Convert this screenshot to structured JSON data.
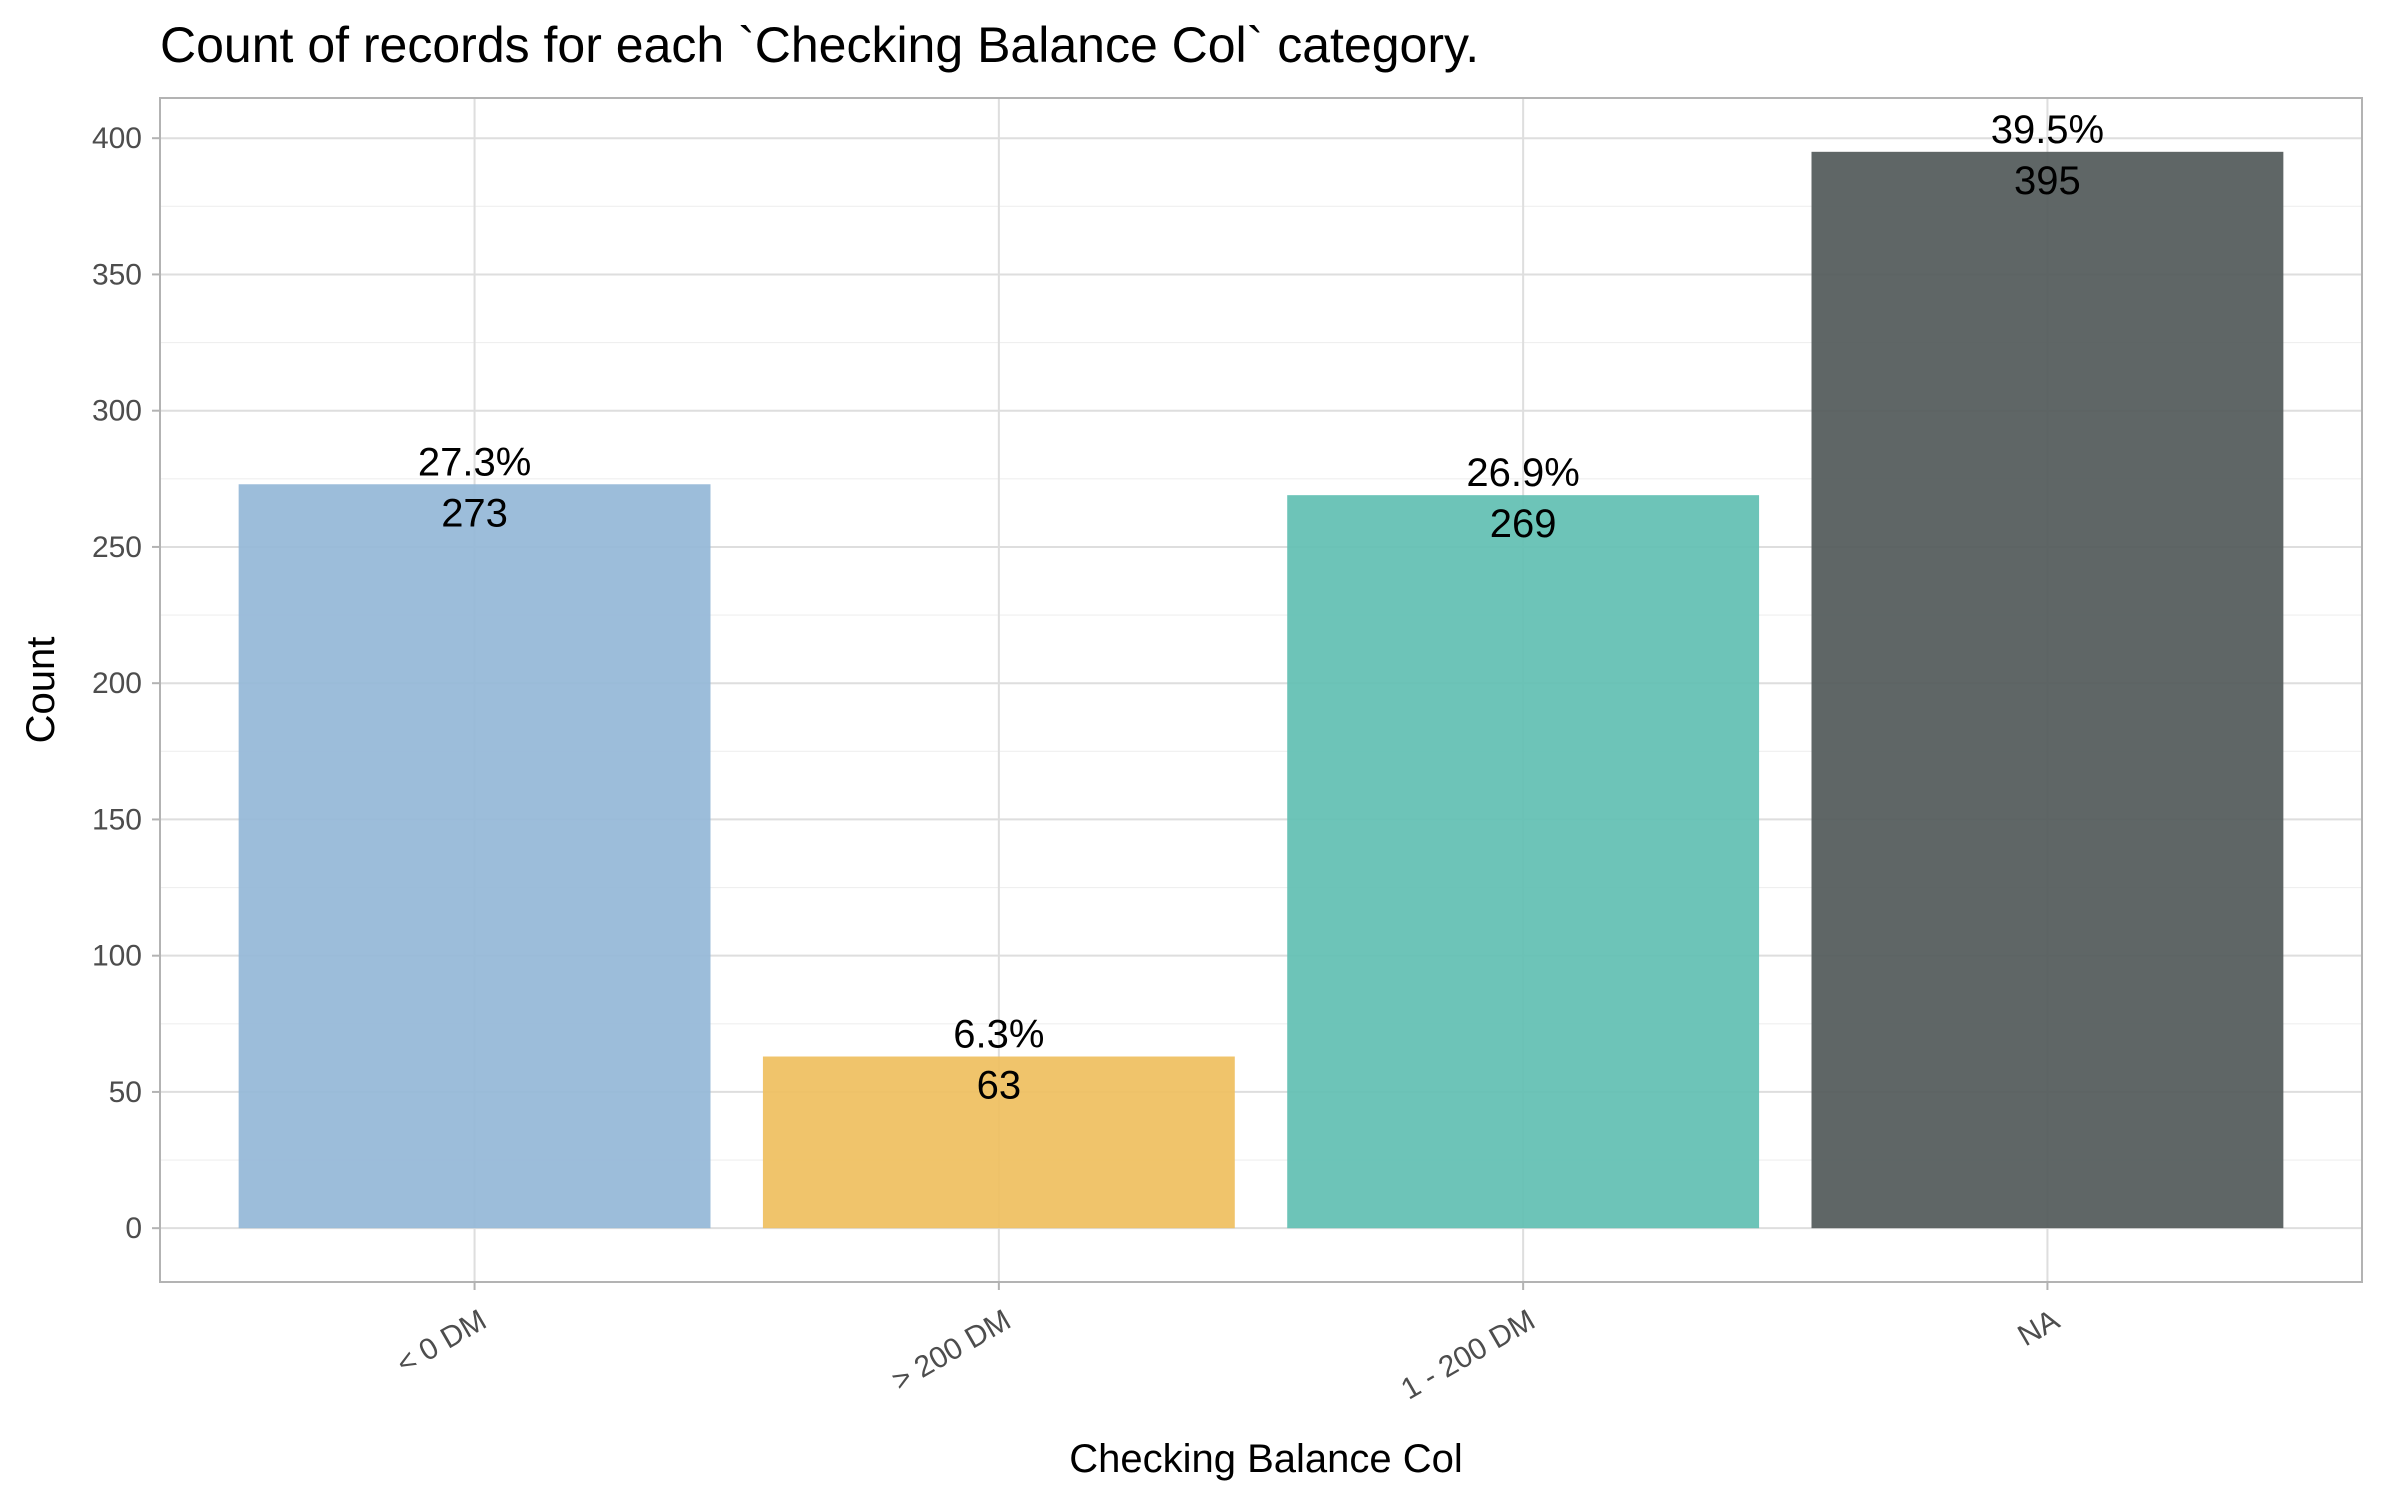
{
  "chart_data": {
    "type": "bar",
    "title": "Count of records for each `Checking Balance Col` category.",
    "xlabel": "Checking Balance Col",
    "ylabel": "Count",
    "categories": [
      "< 0 DM",
      "> 200 DM",
      "1 - 200 DM",
      "NA"
    ],
    "values": [
      273,
      63,
      269,
      395
    ],
    "percent_labels": [
      "27.3%",
      "6.3%",
      "26.9%",
      "39.5%"
    ],
    "count_labels": [
      "273",
      "63",
      "269",
      "395"
    ],
    "colors": [
      "#94B8D7",
      "#EFC060",
      "#62C0B3",
      "#535A5A"
    ],
    "ylim": [
      -19.75,
      414.75
    ],
    "yticks": [
      0,
      50,
      100,
      150,
      200,
      250,
      300,
      350,
      400
    ],
    "ytick_labels": [
      "0",
      "50",
      "100",
      "150",
      "200",
      "250",
      "300",
      "350",
      "400"
    ],
    "grid": true,
    "legend": "none"
  }
}
